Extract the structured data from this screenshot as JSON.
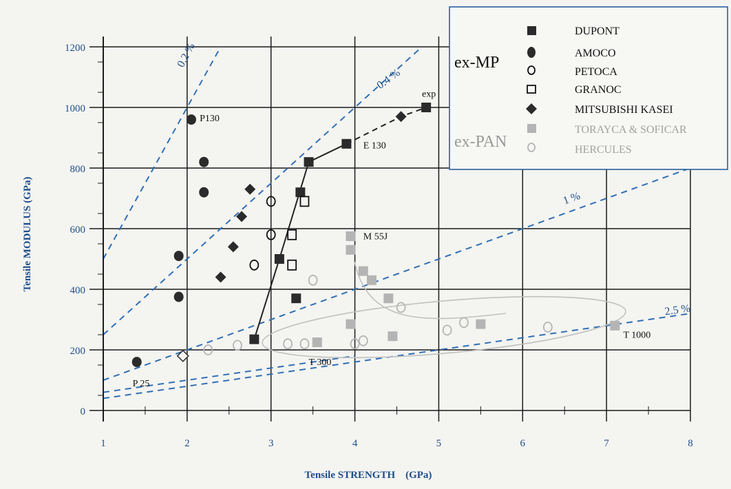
{
  "chart_data": {
    "type": "scatter",
    "title": "",
    "xlabel": "Tensile STRENGTH    (GPa)",
    "ylabel": "Tensile MODULUS  (GPa)",
    "xlim": [
      1,
      8
    ],
    "ylim": [
      0,
      1200
    ],
    "x_ticks": [
      1,
      2,
      3,
      4,
      5,
      6,
      7,
      8
    ],
    "y_ticks": [
      0,
      200,
      400,
      600,
      800,
      1000,
      1200
    ],
    "grid": "horizontal lines and vertical lines at each integer GPa",
    "legend_position": "top-right",
    "legend_groups": [
      {
        "label": "ex-MP",
        "color": "#111111",
        "entries": [
          "DUPONT",
          "AMOCO",
          "PETOCA",
          "GRANOC",
          "MITSUBISHI KASEI"
        ]
      },
      {
        "label": "ex-PAN",
        "color": "#a9a9a9",
        "entries": [
          "TORAYCA & SOFICAR",
          "HERCULES"
        ]
      }
    ],
    "series": [
      {
        "name": "DUPONT",
        "marker": "filled-square",
        "color": "#2b2b2b",
        "points": [
          [
            2.8,
            235
          ],
          [
            3.1,
            500
          ],
          [
            3.3,
            370
          ],
          [
            3.35,
            720
          ],
          [
            3.45,
            820
          ],
          [
            3.9,
            880
          ],
          [
            4.85,
            1000
          ]
        ]
      },
      {
        "name": "AMOCO",
        "marker": "filled-circle",
        "color": "#2b2b2b",
        "points": [
          [
            1.4,
            160
          ],
          [
            2.05,
            960
          ],
          [
            1.9,
            510
          ],
          [
            1.9,
            375
          ],
          [
            2.2,
            820
          ],
          [
            2.2,
            720
          ]
        ]
      },
      {
        "name": "PETOCA",
        "marker": "open-circle",
        "color": "#111111",
        "points": [
          [
            3.0,
            690
          ],
          [
            3.0,
            580
          ],
          [
            2.8,
            480
          ]
        ]
      },
      {
        "name": "GRANOC",
        "marker": "open-square",
        "color": "#111111",
        "points": [
          [
            3.25,
            580
          ],
          [
            3.25,
            480
          ],
          [
            3.4,
            690
          ]
        ]
      },
      {
        "name": "MITSUBISHI KASEI",
        "marker": "filled-diamond",
        "color": "#2b2b2b",
        "points": [
          [
            1.95,
            180
          ],
          [
            2.4,
            440
          ],
          [
            2.55,
            540
          ],
          [
            2.65,
            640
          ],
          [
            2.75,
            730
          ],
          [
            4.55,
            970
          ]
        ]
      },
      {
        "name": "TORAYCA & SOFICAR",
        "marker": "filled-square",
        "color": "#b4b4b4",
        "points": [
          [
            3.55,
            225
          ],
          [
            3.95,
            285
          ],
          [
            3.95,
            530
          ],
          [
            3.95,
            575
          ],
          [
            4.1,
            460
          ],
          [
            4.2,
            430
          ],
          [
            4.4,
            370
          ],
          [
            4.45,
            245
          ],
          [
            5.5,
            285
          ],
          [
            7.1,
            280
          ]
        ]
      },
      {
        "name": "HERCULES",
        "marker": "open-circle",
        "color": "#b4b4b4",
        "points": [
          [
            2.25,
            200
          ],
          [
            2.6,
            215
          ],
          [
            3.2,
            220
          ],
          [
            3.4,
            220
          ],
          [
            3.5,
            430
          ],
          [
            4.0,
            220
          ],
          [
            4.1,
            230
          ],
          [
            4.55,
            340
          ],
          [
            5.1,
            265
          ],
          [
            5.3,
            290
          ],
          [
            6.3,
            275
          ]
        ]
      }
    ],
    "connected_series": [
      {
        "points": [
          [
            2.8,
            235
          ],
          [
            3.1,
            500
          ],
          [
            3.45,
            820
          ],
          [
            3.9,
            880
          ]
        ],
        "style": "solid",
        "color": "#222222"
      },
      {
        "points": [
          [
            3.9,
            880
          ],
          [
            4.55,
            970
          ],
          [
            4.85,
            1000
          ]
        ],
        "style": "dashed",
        "color": "#222222"
      }
    ],
    "strain_lines": [
      {
        "label": "0.2 %",
        "pct": 0.2
      },
      {
        "label": "0.4 %",
        "pct": 0.4
      },
      {
        "label": "1 %",
        "pct": 1.0
      },
      {
        "label": "2.5 %",
        "pct": 2.5
      }
    ],
    "annotations": [
      {
        "text": "P130",
        "x": 2.15,
        "y": 955
      },
      {
        "text": "exp",
        "x": 4.8,
        "y": 1035
      },
      {
        "text": "E 130",
        "x": 4.1,
        "y": 865
      },
      {
        "text": "M 55J",
        "x": 4.1,
        "y": 565
      },
      {
        "text": "T 300",
        "x": 3.45,
        "y": 150
      },
      {
        "text": "T 1000",
        "x": 7.2,
        "y": 240
      },
      {
        "text": "P 25",
        "x": 1.35,
        "y": 80
      }
    ]
  }
}
